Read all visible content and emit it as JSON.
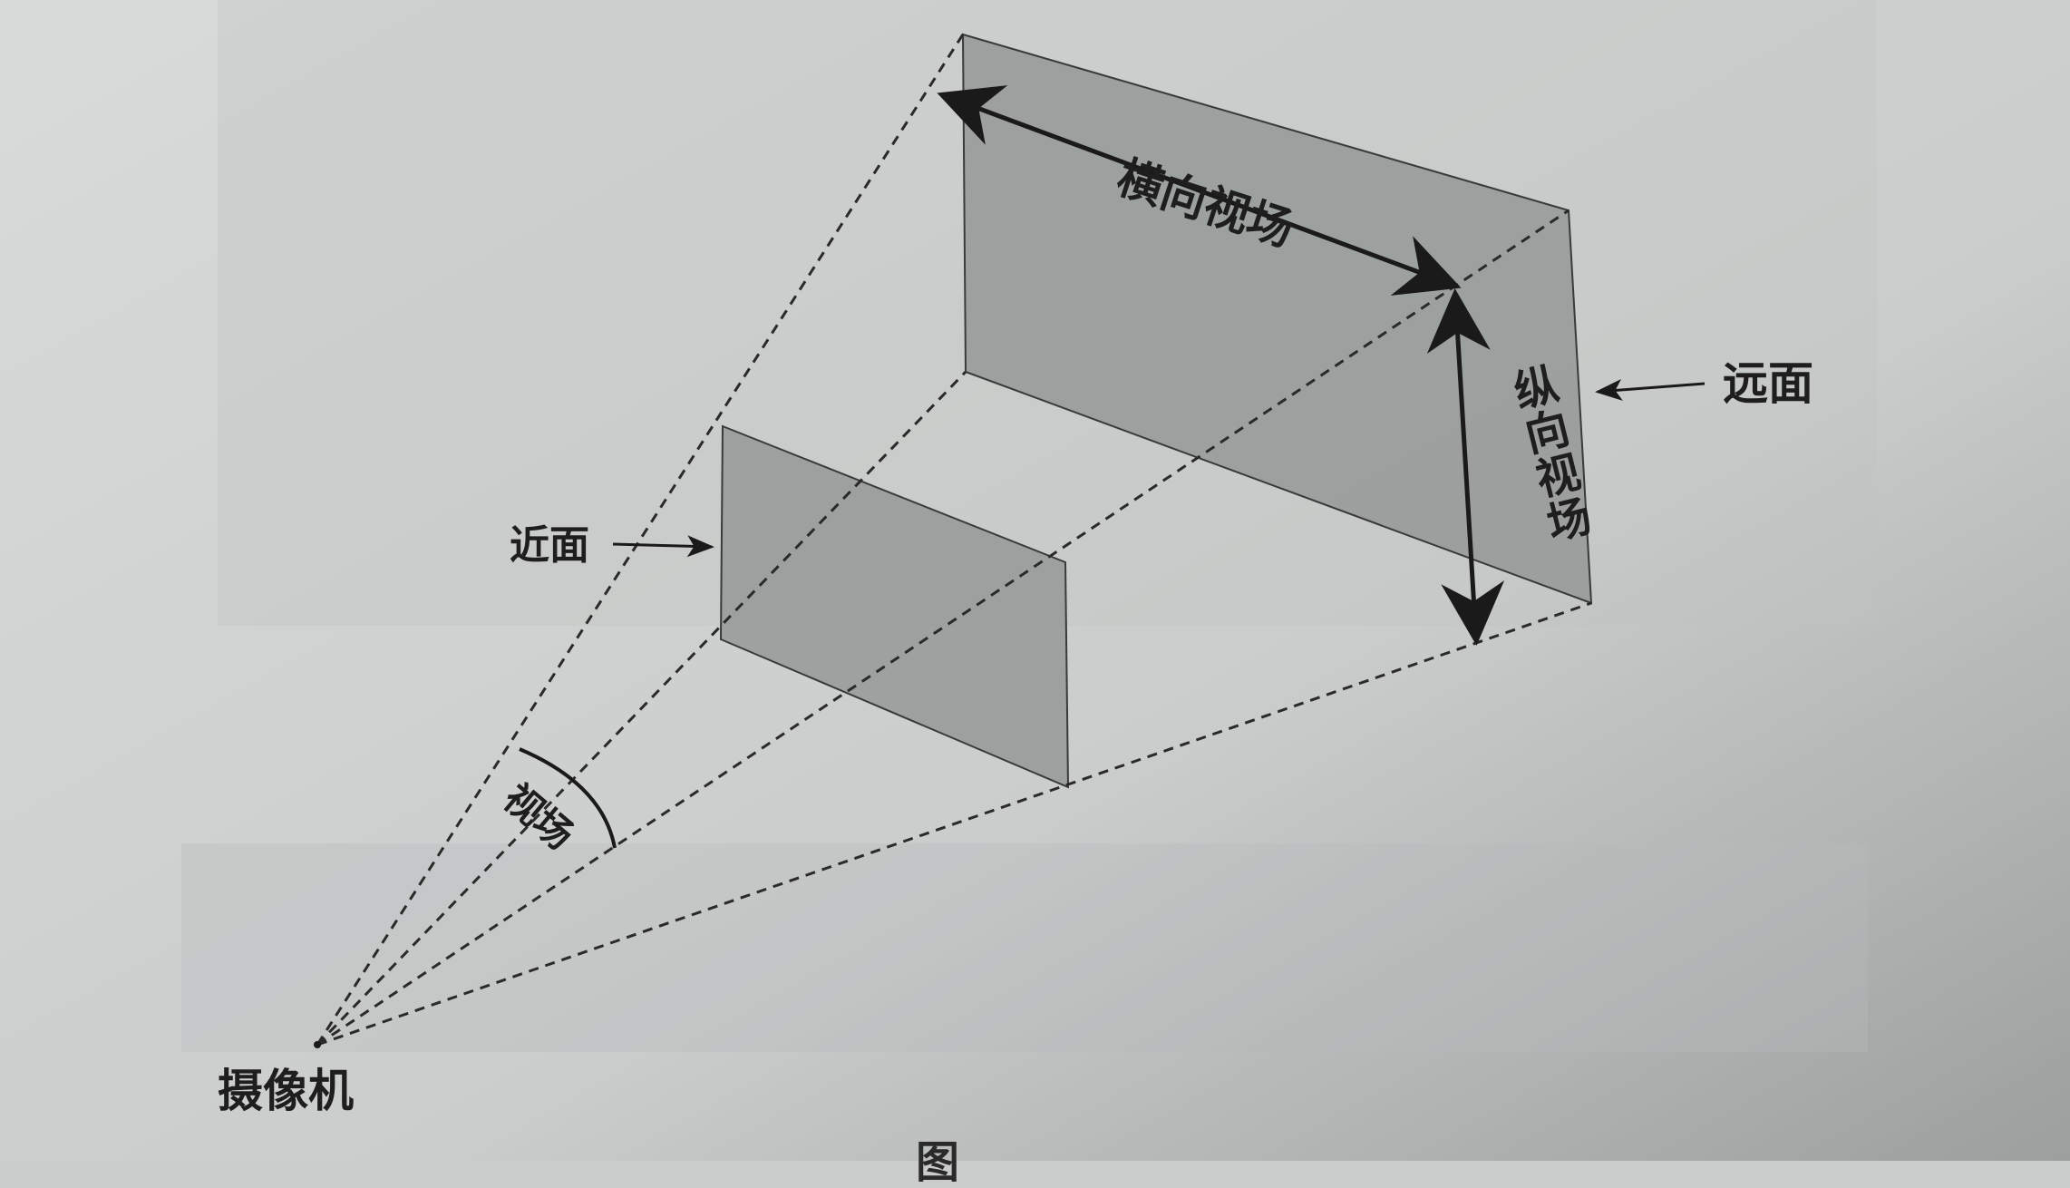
{
  "labels": {
    "far_plane": "远面",
    "near_plane": "近面",
    "camera": "摄像机",
    "horizontal_fov": "横向视场",
    "vertical_fov": "纵向视场",
    "fov": "视场",
    "figure_caption": "图"
  },
  "colors": {
    "paper": "#cfd2d1",
    "plane_fill": "#8f9392",
    "line": "#2a2a2a",
    "text": "#1e1e1e"
  }
}
